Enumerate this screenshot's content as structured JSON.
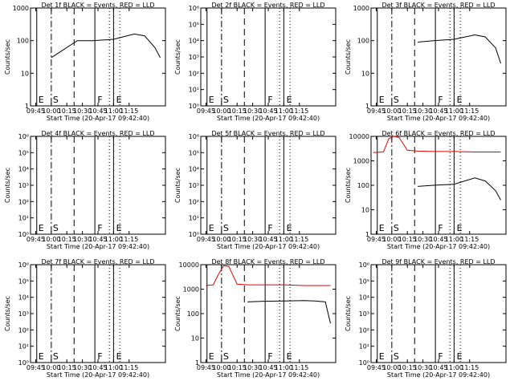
{
  "chart_data": [
    {
      "type": "line",
      "title": "Det 1f BLACK = Events, RED = LLD",
      "ylabel": "Counts/sec",
      "xlabel": "Start Time (20-Apr-17 09:42:40)",
      "xticks": [
        "09:45",
        "10:00",
        "10:15",
        "10:30",
        "10:45",
        "11:00",
        "11:15"
      ],
      "yscale": "log",
      "ylim": [
        1,
        1000
      ],
      "yticks": [
        "1",
        "10",
        "100",
        "1000"
      ],
      "markers": [
        "E",
        "S",
        "F",
        "E"
      ],
      "series": [
        {
          "color": "#000000",
          "points": [
            [
              600,
              30
            ],
            [
              625,
              100
            ],
            [
              640,
              100
            ],
            [
              660,
              110
            ],
            [
              680,
              160
            ],
            [
              690,
              140
            ],
            [
              700,
              60
            ],
            [
              705,
              30
            ]
          ]
        }
      ]
    },
    {
      "type": "line",
      "title": "Det 2f BLACK = Events, RED = LLD",
      "ylabel": "Counts/sec",
      "xlabel": "Start Time (20-Apr-17 09:42:40)",
      "xticks": [
        "09:45",
        "10:00",
        "10:15",
        "10:30",
        "10:45",
        "11:00",
        "11:15"
      ],
      "yscale": "log",
      "ylim": [
        1,
        1000000
      ],
      "yticks": [
        "10⁰",
        "10¹",
        "10²",
        "10³",
        "10⁴",
        "10⁵",
        "10⁶"
      ],
      "markers": [
        "E",
        "S",
        "F",
        "E"
      ],
      "series": []
    },
    {
      "type": "line",
      "title": "Det 3f BLACK = Events, RED = LLD",
      "ylabel": "Counts/sec",
      "xlabel": "Start Time (20-Apr-17 09:42:40)",
      "xticks": [
        "09:45",
        "10:00",
        "10:15",
        "10:30",
        "10:45",
        "11:00",
        "11:15"
      ],
      "yscale": "log",
      "ylim": [
        1,
        1000
      ],
      "yticks": [
        "1",
        "10",
        "100",
        "1000"
      ],
      "markers": [
        "E",
        "S",
        "F",
        "E"
      ],
      "series": [
        {
          "color": "#000000",
          "points": [
            [
              625,
              90
            ],
            [
              640,
              100
            ],
            [
              660,
              110
            ],
            [
              680,
              150
            ],
            [
              690,
              130
            ],
            [
              700,
              60
            ],
            [
              705,
              20
            ]
          ]
        }
      ]
    },
    {
      "type": "line",
      "title": "Det 4f BLACK = Events, RED = LLD",
      "ylabel": "Counts/sec",
      "xlabel": "Start Time (20-Apr-17 09:42:40)",
      "xticks": [
        "09:45",
        "10:00",
        "10:15",
        "10:30",
        "10:45",
        "11:00",
        "11:15"
      ],
      "yscale": "log",
      "ylim": [
        1,
        1000000
      ],
      "yticks": [
        "10⁰",
        "10¹",
        "10²",
        "10³",
        "10⁴",
        "10⁵",
        "10⁶"
      ],
      "markers": [
        "E",
        "S",
        "F",
        "E"
      ],
      "series": []
    },
    {
      "type": "line",
      "title": "Det 5f BLACK = Events, RED = LLD",
      "ylabel": "Counts/sec",
      "xlabel": "Start Time (20-Apr-17 09:42:40)",
      "xticks": [
        "09:45",
        "10:00",
        "10:15",
        "10:30",
        "10:45",
        "11:00",
        "11:15"
      ],
      "yscale": "log",
      "ylim": [
        1,
        1000000
      ],
      "yticks": [
        "10⁰",
        "10¹",
        "10²",
        "10³",
        "10⁴",
        "10⁵",
        "10⁶"
      ],
      "markers": [
        "E",
        "S",
        "F",
        "E"
      ],
      "series": []
    },
    {
      "type": "line",
      "title": "Det 6f BLACK = Events, RED = LLD",
      "ylabel": "Counts/sec",
      "xlabel": "Start Time (20-Apr-17 09:42:40)",
      "xticks": [
        "09:45",
        "10:00",
        "10:15",
        "10:30",
        "10:45",
        "11:00",
        "11:15"
      ],
      "yscale": "log",
      "ylim": [
        1,
        10000
      ],
      "yticks": [
        "1",
        "10",
        "100",
        "1000",
        "10000"
      ],
      "markers": [
        "E",
        "S",
        "F",
        "E"
      ],
      "series": [
        {
          "color": "#e00000",
          "points": [
            [
              582,
              2200
            ],
            [
              592,
              2300
            ],
            [
              597,
              8000
            ],
            [
              602,
              10000
            ],
            [
              607,
              9000
            ],
            [
              615,
              2700
            ],
            [
              625,
              2500
            ],
            [
              640,
              2400
            ],
            [
              660,
              2400
            ],
            [
              680,
              2300
            ],
            [
              705,
              2300
            ]
          ]
        },
        {
          "color": "#000000",
          "points": [
            [
              625,
              90
            ],
            [
              640,
              100
            ],
            [
              660,
              110
            ],
            [
              680,
              200
            ],
            [
              690,
              150
            ],
            [
              700,
              60
            ],
            [
              705,
              25
            ]
          ]
        }
      ]
    },
    {
      "type": "line",
      "title": "Det 7f BLACK = Events, RED = LLD",
      "ylabel": "Counts/sec",
      "xlabel": "Start Time (20-Apr-17 09:42:40)",
      "xticks": [
        "09:45",
        "10:00",
        "10:15",
        "10:30",
        "10:45",
        "11:00",
        "11:15"
      ],
      "yscale": "log",
      "ylim": [
        1,
        1000000
      ],
      "yticks": [
        "10⁰",
        "10¹",
        "10²",
        "10³",
        "10⁴",
        "10⁵",
        "10⁶"
      ],
      "markers": [
        "E",
        "S",
        "F",
        "E"
      ],
      "series": []
    },
    {
      "type": "line",
      "title": "Det 8f BLACK = Events, RED = LLD",
      "ylabel": "Counts/sec",
      "xlabel": "Start Time (20-Apr-17 09:42:40)",
      "xticks": [
        "09:45",
        "10:00",
        "10:15",
        "10:30",
        "10:45",
        "11:00",
        "11:15"
      ],
      "yscale": "log",
      "ylim": [
        1,
        10000
      ],
      "yticks": [
        "1",
        "10",
        "100",
        "1000",
        "10000"
      ],
      "markers": [
        "E",
        "S",
        "F",
        "E"
      ],
      "series": [
        {
          "color": "#e00000",
          "points": [
            [
              585,
              1400
            ],
            [
              592,
              1500
            ],
            [
              597,
              4000
            ],
            [
              602,
              9000
            ],
            [
              607,
              8500
            ],
            [
              615,
              1600
            ],
            [
              625,
              1500
            ],
            [
              640,
              1500
            ],
            [
              660,
              1500
            ],
            [
              680,
              1400
            ],
            [
              705,
              1400
            ]
          ]
        },
        {
          "color": "#000000",
          "points": [
            [
              625,
              300
            ],
            [
              640,
              320
            ],
            [
              660,
              330
            ],
            [
              680,
              340
            ],
            [
              690,
              330
            ],
            [
              700,
              300
            ],
            [
              705,
              40
            ]
          ]
        }
      ]
    },
    {
      "type": "line",
      "title": "Det 9f BLACK = Events, RED = LLD",
      "ylabel": "Counts/sec",
      "xlabel": "Start Time (20-Apr-17 09:42:40)",
      "xticks": [
        "09:45",
        "10:00",
        "10:15",
        "10:30",
        "10:45",
        "11:00",
        "11:15"
      ],
      "yscale": "log",
      "ylim": [
        1,
        1000000
      ],
      "yticks": [
        "10⁰",
        "10¹",
        "10²",
        "10³",
        "10⁴",
        "10⁵",
        "10⁶"
      ],
      "markers": [
        "E",
        "S",
        "F",
        "E"
      ],
      "series": []
    }
  ]
}
